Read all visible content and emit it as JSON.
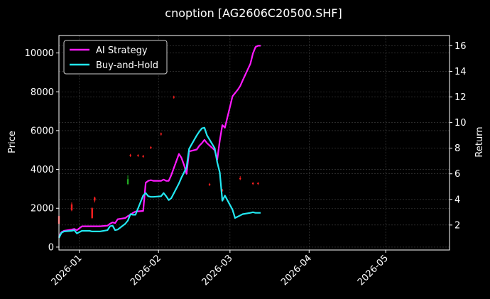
{
  "chart_data": {
    "type": "line",
    "title": "cnoption [AG2606C20500.SHF]",
    "ylabel": "Price",
    "y2label": "Return",
    "x_range": [
      "2025-12-24",
      "2026-05-26"
    ],
    "ylim": [
      -150,
      10900
    ],
    "y2lim": [
      0.05,
      16.8
    ],
    "y_ticks": [
      0,
      2000,
      4000,
      6000,
      8000,
      10000
    ],
    "y2_ticks": [
      2,
      4,
      6,
      8,
      10,
      12,
      14,
      16
    ],
    "x_ticks": [
      "2026-01-01",
      "2026-02-01",
      "2026-03-01",
      "2026-04-01",
      "2026-05-01"
    ],
    "x_tick_labels": [
      "2026-01",
      "2026-02",
      "2026-03",
      "2026-04",
      "2026-05"
    ],
    "grid": true,
    "legend_position": "top-left",
    "colors": {
      "background": "#000000",
      "ai": "#ff1aff",
      "bh": "#22e8f2",
      "candle_up": "#ff2020",
      "candle_down": "#22aa22",
      "grid": "#444444",
      "axis": "#ffffff"
    },
    "series": [
      {
        "name": "AI Strategy",
        "axis": "right",
        "color": "#ff1aff",
        "points": [
          [
            "2025-12-24",
            1.1
          ],
          [
            "2025-12-25",
            1.45
          ],
          [
            "2025-12-26",
            1.55
          ],
          [
            "2025-12-29",
            1.65
          ],
          [
            "2025-12-30",
            1.7
          ],
          [
            "2025-12-31",
            1.6
          ],
          [
            "2026-01-02",
            1.9
          ],
          [
            "2026-01-05",
            1.9
          ],
          [
            "2026-01-06",
            1.9
          ],
          [
            "2026-01-07",
            1.9
          ],
          [
            "2026-01-08",
            1.9
          ],
          [
            "2026-01-09",
            1.9
          ],
          [
            "2026-01-12",
            1.95
          ],
          [
            "2026-01-13",
            2.1
          ],
          [
            "2026-01-14",
            2.2
          ],
          [
            "2026-01-15",
            2.15
          ],
          [
            "2026-01-16",
            2.45
          ],
          [
            "2026-01-19",
            2.55
          ],
          [
            "2026-01-20",
            2.7
          ],
          [
            "2026-01-21",
            2.8
          ],
          [
            "2026-01-22",
            2.95
          ],
          [
            "2026-01-23",
            3.05
          ],
          [
            "2026-01-26",
            3.1
          ],
          [
            "2026-01-27",
            5.3
          ],
          [
            "2026-01-28",
            5.45
          ],
          [
            "2026-01-29",
            5.5
          ],
          [
            "2026-01-30",
            5.45
          ],
          [
            "2026-02-02",
            5.45
          ],
          [
            "2026-02-03",
            5.55
          ],
          [
            "2026-02-04",
            5.45
          ],
          [
            "2026-02-05",
            5.45
          ],
          [
            "2026-02-06",
            5.9
          ],
          [
            "2026-02-09",
            7.55
          ],
          [
            "2026-02-10",
            7.25
          ],
          [
            "2026-02-11",
            6.7
          ],
          [
            "2026-02-12",
            6.0
          ],
          [
            "2026-02-13",
            7.75
          ],
          [
            "2026-02-16",
            7.9
          ],
          [
            "2026-02-17",
            8.2
          ],
          [
            "2026-02-18",
            8.4
          ],
          [
            "2026-02-19",
            8.65
          ],
          [
            "2026-02-20",
            8.4
          ],
          [
            "2026-02-23",
            7.85
          ],
          [
            "2026-02-24",
            7.1
          ],
          [
            "2026-02-25",
            8.6
          ],
          [
            "2026-02-26",
            9.8
          ],
          [
            "2026-02-27",
            9.6
          ],
          [
            "2026-03-02",
            12.05
          ],
          [
            "2026-03-03",
            12.3
          ],
          [
            "2026-03-04",
            12.55
          ],
          [
            "2026-03-05",
            12.85
          ],
          [
            "2026-03-06",
            13.3
          ],
          [
            "2026-03-09",
            14.6
          ],
          [
            "2026-03-10",
            15.4
          ],
          [
            "2026-03-11",
            15.9
          ],
          [
            "2026-03-12",
            16.0
          ],
          [
            "2026-03-13",
            16.0
          ]
        ]
      },
      {
        "name": "Buy-and-Hold",
        "axis": "right",
        "color": "#22e8f2",
        "points": [
          [
            "2025-12-24",
            1.0
          ],
          [
            "2025-12-25",
            1.4
          ],
          [
            "2025-12-26",
            1.5
          ],
          [
            "2025-12-29",
            1.55
          ],
          [
            "2025-12-30",
            1.6
          ],
          [
            "2025-12-31",
            1.35
          ],
          [
            "2026-01-02",
            1.55
          ],
          [
            "2026-01-05",
            1.55
          ],
          [
            "2026-01-06",
            1.5
          ],
          [
            "2026-01-07",
            1.5
          ],
          [
            "2026-01-08",
            1.5
          ],
          [
            "2026-01-09",
            1.5
          ],
          [
            "2026-01-12",
            1.6
          ],
          [
            "2026-01-13",
            1.9
          ],
          [
            "2026-01-14",
            1.95
          ],
          [
            "2026-01-15",
            1.6
          ],
          [
            "2026-01-16",
            1.65
          ],
          [
            "2026-01-19",
            2.1
          ],
          [
            "2026-01-20",
            2.35
          ],
          [
            "2026-01-21",
            2.85
          ],
          [
            "2026-01-22",
            2.8
          ],
          [
            "2026-01-23",
            2.8
          ],
          [
            "2026-01-26",
            4.3
          ],
          [
            "2026-01-27",
            4.5
          ],
          [
            "2026-01-28",
            4.25
          ],
          [
            "2026-01-29",
            4.2
          ],
          [
            "2026-01-30",
            4.2
          ],
          [
            "2026-02-02",
            4.25
          ],
          [
            "2026-02-03",
            4.5
          ],
          [
            "2026-02-04",
            4.25
          ],
          [
            "2026-02-05",
            3.95
          ],
          [
            "2026-02-06",
            4.1
          ],
          [
            "2026-02-09",
            5.25
          ],
          [
            "2026-02-10",
            5.7
          ],
          [
            "2026-02-11",
            6.1
          ],
          [
            "2026-02-12",
            6.5
          ],
          [
            "2026-02-13",
            7.95
          ],
          [
            "2026-02-16",
            9.0
          ],
          [
            "2026-02-17",
            9.3
          ],
          [
            "2026-02-18",
            9.55
          ],
          [
            "2026-02-19",
            9.6
          ],
          [
            "2026-02-20",
            9.0
          ],
          [
            "2026-02-23",
            8.0
          ],
          [
            "2026-02-24",
            6.9
          ],
          [
            "2026-02-25",
            6.1
          ],
          [
            "2026-02-26",
            3.9
          ],
          [
            "2026-02-27",
            4.3
          ],
          [
            "2026-03-02",
            3.2
          ],
          [
            "2026-03-03",
            2.55
          ],
          [
            "2026-03-04",
            2.65
          ],
          [
            "2026-03-05",
            2.75
          ],
          [
            "2026-03-06",
            2.85
          ],
          [
            "2026-03-09",
            2.95
          ],
          [
            "2026-03-10",
            3.0
          ],
          [
            "2026-03-11",
            2.95
          ],
          [
            "2026-03-12",
            2.95
          ],
          [
            "2026-03-13",
            2.95
          ]
        ]
      },
      {
        "type": "candlestick",
        "axis": "left",
        "candles": [
          {
            "date": "2025-12-24",
            "open": 1600,
            "close": 1200,
            "high": 1700,
            "low": 1150,
            "color": "up"
          },
          {
            "date": "2025-12-29",
            "open": 1900,
            "close": 2200,
            "high": 2300,
            "low": 1850,
            "color": "up"
          },
          {
            "date": "2026-01-06",
            "open": 1500,
            "close": 2000,
            "high": 2050,
            "low": 1450,
            "color": "up"
          },
          {
            "date": "2026-01-07",
            "open": 2400,
            "close": 2550,
            "high": 2600,
            "low": 2300,
            "color": "up"
          },
          {
            "date": "2026-01-20",
            "open": 3500,
            "close": 3250,
            "high": 3700,
            "low": 3200,
            "color": "down"
          },
          {
            "date": "2026-01-21",
            "open": 4750,
            "close": 4700,
            "high": 4800,
            "low": 4650,
            "color": "up"
          },
          {
            "date": "2026-01-24",
            "open": 4750,
            "close": 4700,
            "high": 4780,
            "low": 4650,
            "color": "up"
          },
          {
            "date": "2026-01-26",
            "open": 4700,
            "close": 4650,
            "high": 4750,
            "low": 4600,
            "color": "up"
          },
          {
            "date": "2026-01-29",
            "open": 5150,
            "close": 5100,
            "high": 5200,
            "low": 5050,
            "color": "up"
          },
          {
            "date": "2026-02-02",
            "open": 5850,
            "close": 5800,
            "high": 5900,
            "low": 5750,
            "color": "up"
          },
          {
            "date": "2026-02-07",
            "open": 7750,
            "close": 7700,
            "high": 7800,
            "low": 7650,
            "color": "up"
          },
          {
            "date": "2026-02-21",
            "open": 3250,
            "close": 3200,
            "high": 3300,
            "low": 3150,
            "color": "up"
          },
          {
            "date": "2026-02-26",
            "open": 2950,
            "close": 2900,
            "high": 3000,
            "low": 2850,
            "color": "up"
          },
          {
            "date": "2026-03-05",
            "open": 3550,
            "close": 3500,
            "high": 3650,
            "low": 3450,
            "color": "up"
          },
          {
            "date": "2026-03-10",
            "open": 3300,
            "close": 3250,
            "high": 3350,
            "low": 3200,
            "color": "up"
          },
          {
            "date": "2026-03-12",
            "open": 3300,
            "close": 3250,
            "high": 3350,
            "low": 3200,
            "color": "up"
          }
        ]
      }
    ]
  }
}
